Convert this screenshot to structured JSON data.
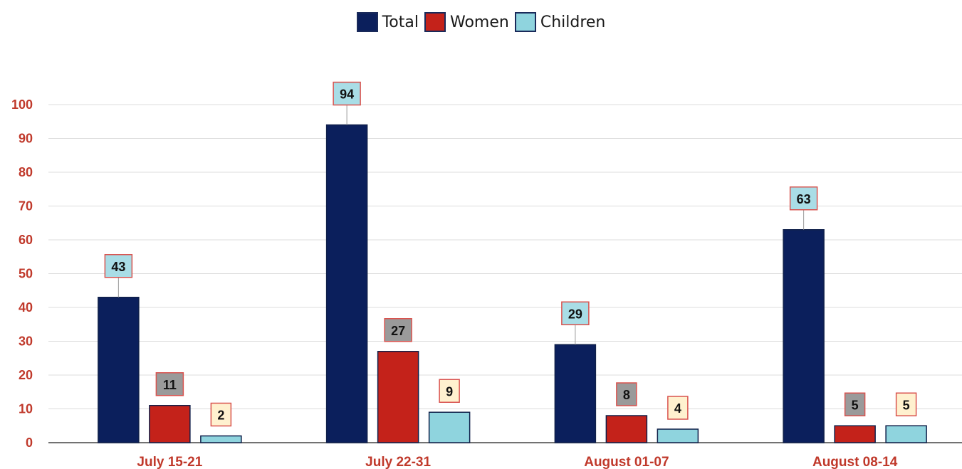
{
  "chart_data": {
    "type": "bar",
    "categories": [
      "July 15-21",
      "July 22-31",
      "August 01-07",
      "August 08-14"
    ],
    "series": [
      {
        "name": "Total",
        "values": [
          43,
          94,
          29,
          63
        ],
        "color": "#0b1f5c"
      },
      {
        "name": "Women",
        "values": [
          11,
          27,
          8,
          5
        ],
        "color": "#c4221a"
      },
      {
        "name": "Children",
        "values": [
          2,
          9,
          4,
          5
        ],
        "color": "#8fd4de"
      }
    ],
    "ylim": [
      0,
      100
    ],
    "yticks": [
      0,
      10,
      20,
      30,
      40,
      50,
      60,
      70,
      80,
      90,
      100
    ],
    "grid": true,
    "legend_position": "top-center",
    "label_styles": {
      "Total": {
        "fill": "#a9dde6",
        "border": "#d9534f"
      },
      "Women": {
        "fill": "#9a9a9a",
        "border": "#d9534f"
      },
      "Children": {
        "fill": "#fff1cf",
        "border": "#d9534f"
      }
    },
    "axis_label_color": "#c0392b"
  }
}
